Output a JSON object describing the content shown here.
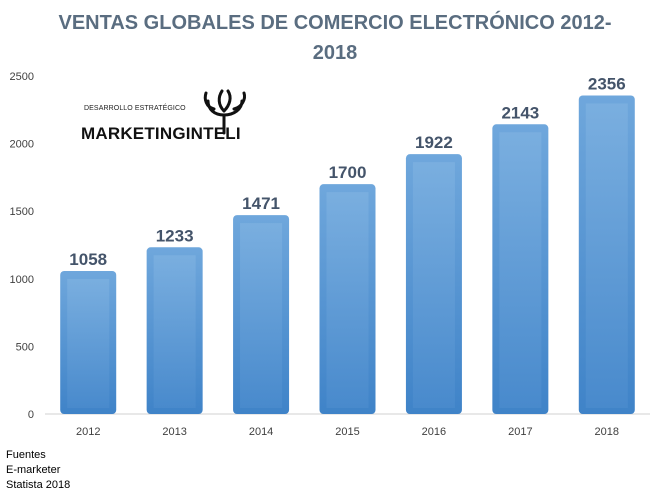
{
  "title": "VENTAS GLOBALES DE COMERCIO ELECTRÓNICO  2012-2018",
  "sources": [
    "Fuentes",
    "E-marketer",
    "Statista 2018"
  ],
  "logo": {
    "subtitle": "DESARROLLO ESTRATÉGICO",
    "name": "MARKETINGINTELI",
    "icon": "tree-icon"
  },
  "colors": {
    "bar": "#5b9bd5",
    "bar_dark": "#3f83c8",
    "title": "#5a6d80",
    "label": "#44546a"
  },
  "chart_data": {
    "type": "bar",
    "title": "VENTAS GLOBALES DE COMERCIO ELECTRÓNICO  2012-2018",
    "categories": [
      "2012",
      "2013",
      "2014",
      "2015",
      "2016",
      "2017",
      "2018"
    ],
    "values": [
      1058,
      1233,
      1471,
      1700,
      1922,
      2143,
      2356
    ],
    "ylim": [
      0,
      2500
    ],
    "yticks": [
      0,
      500,
      1000,
      1500,
      2000,
      2500
    ],
    "xlabel": "",
    "ylabel": "",
    "grid": false,
    "data_labels": true
  }
}
